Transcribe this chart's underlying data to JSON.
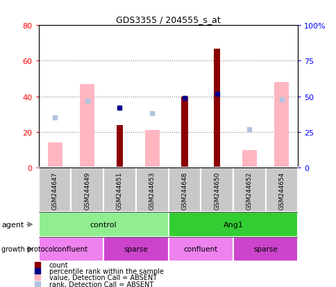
{
  "title": "GDS3355 / 204555_s_at",
  "samples": [
    "GSM244647",
    "GSM244649",
    "GSM244651",
    "GSM244653",
    "GSM244648",
    "GSM244650",
    "GSM244652",
    "GSM244654"
  ],
  "count_values": [
    null,
    null,
    24,
    null,
    40,
    67,
    null,
    null
  ],
  "count_absent_values": [
    14,
    47,
    null,
    21,
    null,
    null,
    10,
    48
  ],
  "rank_values": [
    null,
    null,
    42,
    null,
    49,
    52,
    null,
    null
  ],
  "rank_absent_values": [
    35,
    47,
    null,
    38,
    null,
    null,
    27,
    48
  ],
  "ylim_left": [
    0,
    80
  ],
  "ylim_right": [
    0,
    100
  ],
  "yticks_left": [
    0,
    20,
    40,
    60,
    80
  ],
  "yticks_right": [
    0,
    25,
    50,
    75,
    100
  ],
  "ytick_labels_left": [
    "0",
    "20",
    "40",
    "60",
    "80"
  ],
  "ytick_labels_right": [
    "0",
    "25",
    "50",
    "75",
    "100%"
  ],
  "color_count": "#8B0000",
  "color_rank": "#00008B",
  "color_absent_value": "#FFB6C1",
  "color_absent_rank": "#B0C4DE",
  "color_control": "#90EE90",
  "color_ang1": "#32CD32",
  "color_confluent": "#EE82EE",
  "color_sparse": "#CC44CC",
  "color_sample_box": "#C8C8C8",
  "bar_width": 0.45,
  "agent_groups": [
    {
      "label": "control",
      "start": 0,
      "end": 4,
      "color": "#90EE90"
    },
    {
      "label": "Ang1",
      "start": 4,
      "end": 8,
      "color": "#32CD32"
    }
  ],
  "growth_groups": [
    {
      "label": "confluent",
      "start": 0,
      "end": 2,
      "color": "#EE82EE"
    },
    {
      "label": "sparse",
      "start": 2,
      "end": 4,
      "color": "#CC44CC"
    },
    {
      "label": "confluent",
      "start": 4,
      "end": 6,
      "color": "#EE82EE"
    },
    {
      "label": "sparse",
      "start": 6,
      "end": 8,
      "color": "#CC44CC"
    }
  ]
}
